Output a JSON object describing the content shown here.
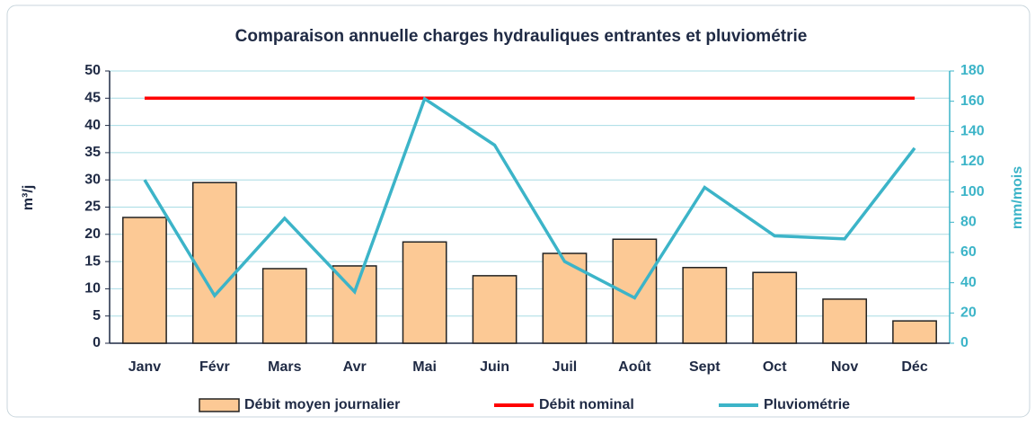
{
  "chart_data": {
    "type": "bar",
    "title": "Comparaison annuelle charges hydrauliques entrantes et pluviométrie",
    "categories": [
      "Janv",
      "Févr",
      "Mars",
      "Avr",
      "Mai",
      "Juin",
      "Juil",
      "Août",
      "Sept",
      "Oct",
      "Nov",
      "Déc"
    ],
    "series": [
      {
        "name": "Débit moyen journalier",
        "type": "bar",
        "color": "#fcc995",
        "values": [
          23.1,
          29.5,
          13.7,
          14.2,
          18.6,
          12.4,
          16.5,
          19.1,
          13.9,
          13,
          8.1,
          4.1
        ]
      },
      {
        "name": "Débit nominal",
        "type": "line",
        "color": "#ff0000",
        "values": [
          45,
          45,
          45,
          45,
          45,
          45,
          45,
          45,
          45,
          45,
          45,
          45
        ]
      },
      {
        "name": "Pluviométrie",
        "type": "line",
        "color": "#3cb4c8",
        "axis": "y2",
        "values": [
          108,
          31.5,
          82.6,
          34,
          161.6,
          131,
          54,
          30,
          103,
          71,
          69,
          129
        ]
      }
    ],
    "ylabel": "m³/j",
    "y2label": "mm/mois",
    "ylim": [
      0,
      50
    ],
    "yticks": [
      0,
      5,
      10,
      15,
      20,
      25,
      30,
      35,
      40,
      45,
      50
    ],
    "y2lim": [
      0,
      180
    ],
    "y2ticks": [
      0,
      20,
      40,
      60,
      80,
      100,
      120,
      140,
      160,
      180
    ],
    "grid": true,
    "legend": "bottom"
  }
}
